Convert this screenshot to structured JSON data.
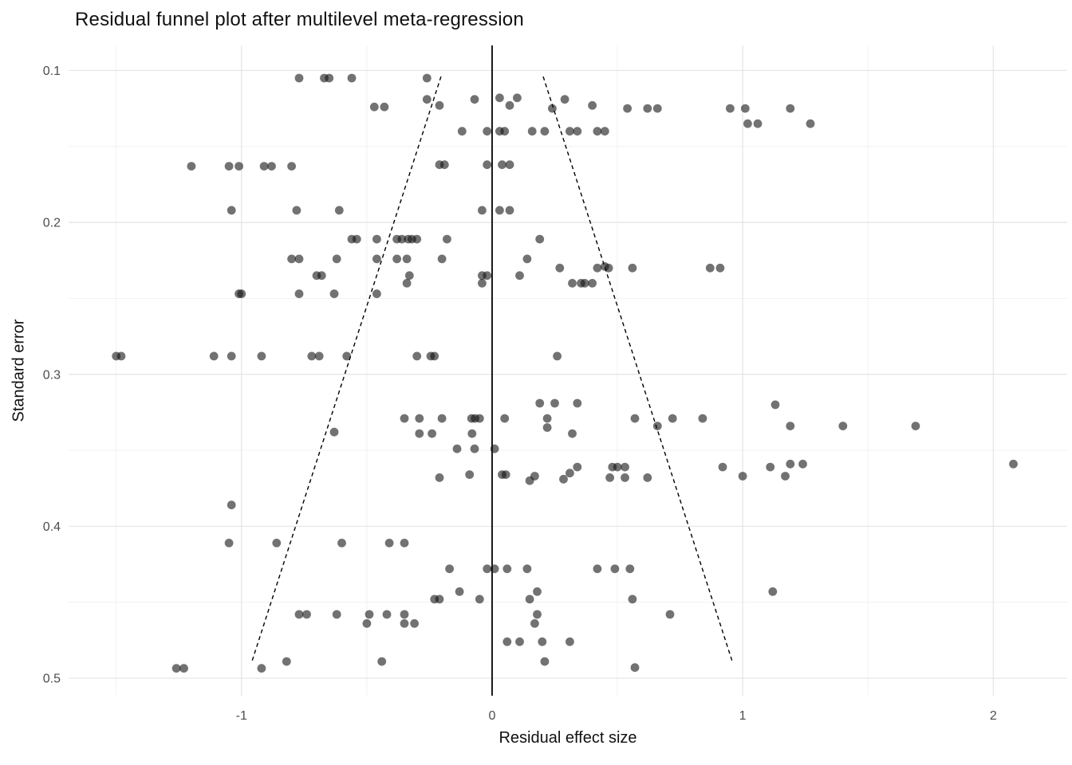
{
  "chart_data": {
    "type": "scatter",
    "title": "Residual funnel plot after multilevel meta-regression",
    "xlabel": "Residual effect size",
    "ylabel": "Standard error",
    "x_ticks": [
      -1,
      0,
      1,
      2
    ],
    "x_minor_ticks": [
      -1.5,
      -0.5,
      0.5,
      1.5
    ],
    "y_ticks": [
      0.1,
      0.2,
      0.3,
      0.4,
      0.5
    ],
    "y_minor_ticks": [
      0.15,
      0.25,
      0.35,
      0.45
    ],
    "xlim": [
      -1.69,
      2.295
    ],
    "ylim": [
      0.0835,
      0.5115
    ],
    "y_axis_reversed": true,
    "grid": {
      "show": true,
      "major_color": "#e4e4e4",
      "minor_color": "#f0f0f0"
    },
    "legend": "none",
    "reference_line": {
      "x": 0,
      "color": "#000000"
    },
    "funnel_lines": {
      "center": 0,
      "multiplier": 1.96,
      "se_min": 0.104,
      "se_max": 0.49,
      "color": "#000000",
      "style": "dashed"
    },
    "point_style": {
      "color": "#141414",
      "opacity": 0.6,
      "radius": 5.4
    },
    "points": [
      [
        -0.77,
        0.105
      ],
      [
        -0.67,
        0.105
      ],
      [
        -0.65,
        0.105
      ],
      [
        -0.56,
        0.105
      ],
      [
        -0.26,
        0.105
      ],
      [
        -0.26,
        0.119
      ],
      [
        -0.07,
        0.119
      ],
      [
        0.03,
        0.118
      ],
      [
        0.1,
        0.118
      ],
      [
        0.29,
        0.119
      ],
      [
        -0.47,
        0.124
      ],
      [
        -0.43,
        0.124
      ],
      [
        -0.21,
        0.123
      ],
      [
        0.07,
        0.123
      ],
      [
        0.24,
        0.125
      ],
      [
        0.4,
        0.123
      ],
      [
        0.54,
        0.125
      ],
      [
        0.62,
        0.125
      ],
      [
        0.66,
        0.125
      ],
      [
        0.95,
        0.125
      ],
      [
        1.01,
        0.125
      ],
      [
        1.19,
        0.125
      ],
      [
        1.02,
        0.135
      ],
      [
        1.06,
        0.135
      ],
      [
        1.27,
        0.135
      ],
      [
        -0.12,
        0.14
      ],
      [
        -0.02,
        0.14
      ],
      [
        0.03,
        0.14
      ],
      [
        0.05,
        0.14
      ],
      [
        0.16,
        0.14
      ],
      [
        0.21,
        0.14
      ],
      [
        0.31,
        0.14
      ],
      [
        0.34,
        0.14
      ],
      [
        0.42,
        0.14
      ],
      [
        0.45,
        0.14
      ],
      [
        -1.2,
        0.163
      ],
      [
        -1.05,
        0.163
      ],
      [
        -1.01,
        0.163
      ],
      [
        -0.91,
        0.163
      ],
      [
        -0.88,
        0.163
      ],
      [
        -0.8,
        0.163
      ],
      [
        -0.21,
        0.162
      ],
      [
        -0.19,
        0.162
      ],
      [
        -0.02,
        0.162
      ],
      [
        0.04,
        0.162
      ],
      [
        0.07,
        0.162
      ],
      [
        -1.04,
        0.192
      ],
      [
        -0.78,
        0.192
      ],
      [
        -0.61,
        0.192
      ],
      [
        -0.04,
        0.192
      ],
      [
        0.03,
        0.192
      ],
      [
        0.07,
        0.192
      ],
      [
        -0.56,
        0.211
      ],
      [
        -0.54,
        0.211
      ],
      [
        -0.46,
        0.211
      ],
      [
        -0.38,
        0.211
      ],
      [
        -0.36,
        0.211
      ],
      [
        -0.335,
        0.211
      ],
      [
        -0.32,
        0.211
      ],
      [
        -0.3,
        0.211
      ],
      [
        -0.18,
        0.211
      ],
      [
        0.19,
        0.211
      ],
      [
        -0.8,
        0.224
      ],
      [
        -0.77,
        0.224
      ],
      [
        -0.62,
        0.224
      ],
      [
        -0.46,
        0.224
      ],
      [
        -0.38,
        0.224
      ],
      [
        -0.34,
        0.224
      ],
      [
        -0.2,
        0.224
      ],
      [
        0.14,
        0.224
      ],
      [
        0.27,
        0.23
      ],
      [
        0.42,
        0.23
      ],
      [
        0.45,
        0.229
      ],
      [
        0.465,
        0.23
      ],
      [
        0.56,
        0.23
      ],
      [
        0.87,
        0.23
      ],
      [
        0.91,
        0.23
      ],
      [
        -0.7,
        0.235
      ],
      [
        -0.68,
        0.235
      ],
      [
        -0.33,
        0.235
      ],
      [
        -0.04,
        0.235
      ],
      [
        -0.02,
        0.235
      ],
      [
        0.11,
        0.235
      ],
      [
        -0.34,
        0.24
      ],
      [
        -0.04,
        0.24
      ],
      [
        0.32,
        0.24
      ],
      [
        0.355,
        0.24
      ],
      [
        0.37,
        0.24
      ],
      [
        0.4,
        0.24
      ],
      [
        -1.01,
        0.247
      ],
      [
        -1.0,
        0.247
      ],
      [
        -0.77,
        0.247
      ],
      [
        -0.63,
        0.247
      ],
      [
        -0.46,
        0.247
      ],
      [
        -1.5,
        0.288
      ],
      [
        -1.48,
        0.288
      ],
      [
        -1.11,
        0.288
      ],
      [
        -1.04,
        0.288
      ],
      [
        -0.92,
        0.288
      ],
      [
        -0.72,
        0.288
      ],
      [
        -0.69,
        0.288
      ],
      [
        -0.58,
        0.288
      ],
      [
        -0.3,
        0.288
      ],
      [
        -0.245,
        0.288
      ],
      [
        -0.23,
        0.288
      ],
      [
        0.26,
        0.288
      ],
      [
        0.19,
        0.319
      ],
      [
        0.25,
        0.319
      ],
      [
        0.34,
        0.319
      ],
      [
        1.13,
        0.32
      ],
      [
        -0.35,
        0.329
      ],
      [
        -0.29,
        0.329
      ],
      [
        -0.2,
        0.329
      ],
      [
        -0.082,
        0.329
      ],
      [
        -0.068,
        0.329
      ],
      [
        -0.05,
        0.329
      ],
      [
        0.05,
        0.329
      ],
      [
        0.22,
        0.329
      ],
      [
        0.57,
        0.329
      ],
      [
        0.72,
        0.329
      ],
      [
        0.84,
        0.329
      ],
      [
        0.22,
        0.335
      ],
      [
        0.66,
        0.334
      ],
      [
        1.19,
        0.334
      ],
      [
        1.4,
        0.334
      ],
      [
        1.69,
        0.334
      ],
      [
        -0.63,
        0.338
      ],
      [
        -0.29,
        0.339
      ],
      [
        -0.24,
        0.339
      ],
      [
        -0.08,
        0.339
      ],
      [
        0.32,
        0.339
      ],
      [
        -0.14,
        0.349
      ],
      [
        -0.07,
        0.349
      ],
      [
        0.01,
        0.349
      ],
      [
        0.34,
        0.361
      ],
      [
        0.48,
        0.361
      ],
      [
        0.5,
        0.361
      ],
      [
        0.53,
        0.361
      ],
      [
        0.92,
        0.361
      ],
      [
        1.11,
        0.361
      ],
      [
        1.19,
        0.359
      ],
      [
        1.24,
        0.359
      ],
      [
        2.08,
        0.359
      ],
      [
        -0.21,
        0.368
      ],
      [
        -0.09,
        0.366
      ],
      [
        0.04,
        0.366
      ],
      [
        0.055,
        0.366
      ],
      [
        0.15,
        0.37
      ],
      [
        0.17,
        0.367
      ],
      [
        0.285,
        0.369
      ],
      [
        0.31,
        0.365
      ],
      [
        0.47,
        0.368
      ],
      [
        0.53,
        0.368
      ],
      [
        0.62,
        0.368
      ],
      [
        1.0,
        0.367
      ],
      [
        1.17,
        0.367
      ],
      [
        -1.04,
        0.386
      ],
      [
        -1.05,
        0.411
      ],
      [
        -0.86,
        0.411
      ],
      [
        -0.6,
        0.411
      ],
      [
        -0.41,
        0.411
      ],
      [
        -0.35,
        0.411
      ],
      [
        -0.17,
        0.428
      ],
      [
        -0.02,
        0.428
      ],
      [
        0.01,
        0.428
      ],
      [
        0.06,
        0.428
      ],
      [
        0.14,
        0.428
      ],
      [
        0.42,
        0.428
      ],
      [
        0.49,
        0.428
      ],
      [
        0.55,
        0.428
      ],
      [
        -0.13,
        0.443
      ],
      [
        0.18,
        0.443
      ],
      [
        1.12,
        0.443
      ],
      [
        -0.23,
        0.448
      ],
      [
        -0.21,
        0.448
      ],
      [
        -0.05,
        0.448
      ],
      [
        0.15,
        0.448
      ],
      [
        0.56,
        0.448
      ],
      [
        -0.77,
        0.458
      ],
      [
        -0.74,
        0.458
      ],
      [
        -0.62,
        0.458
      ],
      [
        -0.49,
        0.458
      ],
      [
        -0.42,
        0.458
      ],
      [
        -0.35,
        0.458
      ],
      [
        0.18,
        0.458
      ],
      [
        0.71,
        0.458
      ],
      [
        -0.5,
        0.464
      ],
      [
        -0.35,
        0.464
      ],
      [
        -0.31,
        0.464
      ],
      [
        0.17,
        0.464
      ],
      [
        0.06,
        0.476
      ],
      [
        0.11,
        0.476
      ],
      [
        0.2,
        0.476
      ],
      [
        0.31,
        0.476
      ],
      [
        -0.82,
        0.489
      ],
      [
        -0.44,
        0.489
      ],
      [
        0.21,
        0.489
      ],
      [
        -1.26,
        0.4935
      ],
      [
        -1.23,
        0.4935
      ],
      [
        -0.92,
        0.4935
      ],
      [
        0.57,
        0.493
      ]
    ]
  }
}
